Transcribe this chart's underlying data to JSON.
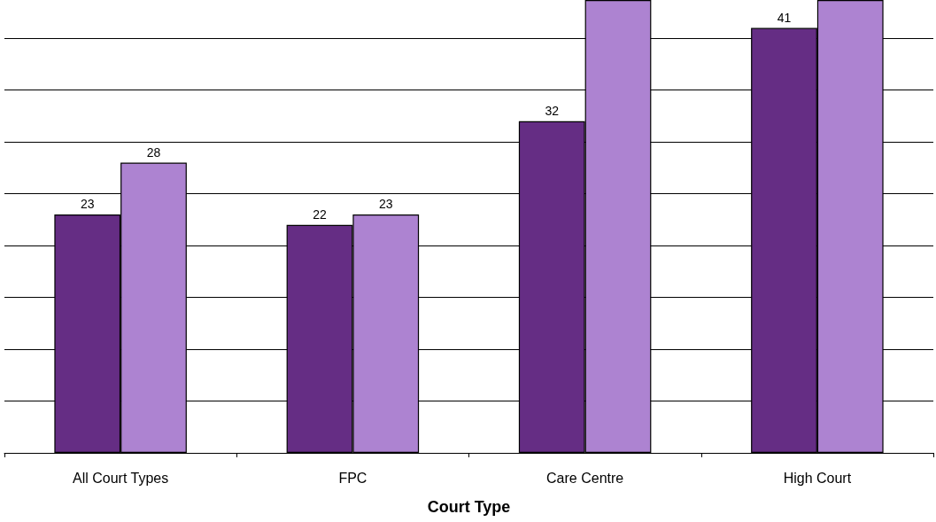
{
  "chart_data": {
    "type": "bar",
    "categories": [
      "All Court Types",
      "FPC",
      "Care Centre",
      "High Court"
    ],
    "xlabel": "Court Type",
    "series": [
      {
        "color": "#652d84",
        "values": [
          23,
          22,
          32,
          41
        ],
        "value_labels": [
          "23",
          "22",
          "32",
          "41"
        ]
      },
      {
        "color": "#ad83d1",
        "values": [
          28,
          23,
          43.7,
          43.7
        ],
        "value_labels": [
          "28",
          "23",
          null,
          null
        ]
      }
    ],
    "ylim": [
      0,
      43.7
    ],
    "yticks": [
      {
        "value": 0,
        "label": null
      },
      {
        "value": 5,
        "label": null
      },
      {
        "value": 10,
        "label": null
      },
      {
        "value": 15,
        "label": null
      },
      {
        "value": 20,
        "label": null
      },
      {
        "value": 25,
        "label": null
      },
      {
        "value": 30,
        "label": null
      },
      {
        "value": 35,
        "label": null
      },
      {
        "value": 40,
        "label": null
      }
    ],
    "grid": "y",
    "tick_labels": "x"
  }
}
